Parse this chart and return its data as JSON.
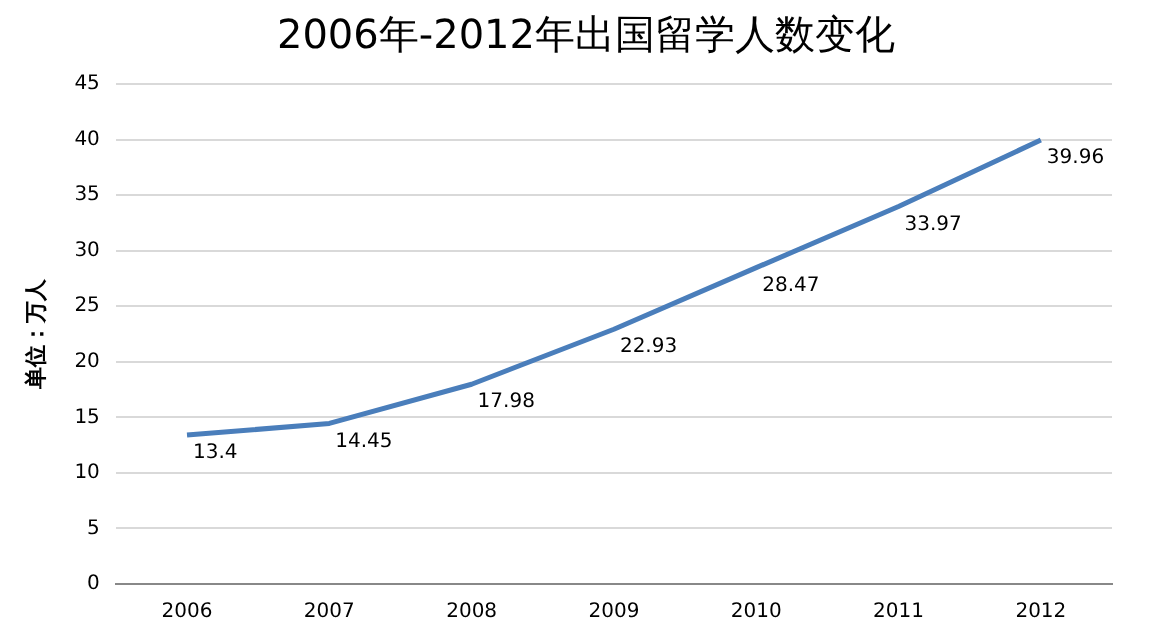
{
  "chart_data": {
    "type": "line",
    "title": "2006年-2012年出国留学人数变化",
    "ylabel": "单位：万人",
    "categories": [
      "2006",
      "2007",
      "2008",
      "2009",
      "2010",
      "2011",
      "2012"
    ],
    "series": [
      {
        "color": "#4a7ebb",
        "values": [
          13.4,
          14.45,
          17.98,
          22.93,
          28.47,
          33.97,
          39.96
        ]
      }
    ],
    "ylim": [
      0,
      45
    ],
    "yticks": [
      0,
      5,
      10,
      15,
      20,
      25,
      30,
      35,
      40,
      45
    ],
    "grid": "y",
    "legend": false,
    "marker": "none",
    "line_style": "solid",
    "data_labels": true
  }
}
